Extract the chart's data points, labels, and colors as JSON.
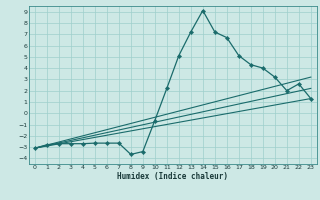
{
  "xlabel": "Humidex (Indice chaleur)",
  "bg_color": "#cde8e5",
  "grid_color": "#9fcfcc",
  "line_color": "#1a6b6b",
  "xlim": [
    -0.5,
    23.5
  ],
  "ylim": [
    -4.5,
    9.5
  ],
  "xticks": [
    0,
    1,
    2,
    3,
    4,
    5,
    6,
    7,
    8,
    9,
    10,
    11,
    12,
    13,
    14,
    15,
    16,
    17,
    18,
    19,
    20,
    21,
    22,
    23
  ],
  "yticks": [
    -4,
    -3,
    -2,
    -1,
    0,
    1,
    2,
    3,
    4,
    5,
    6,
    7,
    8,
    9
  ],
  "series": [
    [
      0,
      -3.1
    ],
    [
      1,
      -2.8
    ],
    [
      2,
      -2.7
    ],
    [
      3,
      -2.7
    ],
    [
      4,
      -2.7
    ],
    [
      5,
      -2.65
    ],
    [
      6,
      -2.65
    ],
    [
      7,
      -2.65
    ],
    [
      8,
      -3.65
    ],
    [
      9,
      -3.4
    ],
    [
      10,
      -0.65
    ],
    [
      11,
      2.2
    ],
    [
      12,
      5.1
    ],
    [
      13,
      7.2
    ],
    [
      14,
      9.1
    ],
    [
      15,
      7.2
    ],
    [
      16,
      6.7
    ],
    [
      17,
      5.1
    ],
    [
      18,
      4.3
    ],
    [
      19,
      4.0
    ],
    [
      20,
      3.2
    ],
    [
      21,
      2.0
    ],
    [
      22,
      2.6
    ],
    [
      23,
      1.3
    ]
  ],
  "trend_lines": [
    {
      "x": [
        0,
        23
      ],
      "y": [
        -3.1,
        1.3
      ]
    },
    {
      "x": [
        0,
        23
      ],
      "y": [
        -3.1,
        2.2
      ]
    },
    {
      "x": [
        0,
        23
      ],
      "y": [
        -3.1,
        3.2
      ]
    }
  ]
}
